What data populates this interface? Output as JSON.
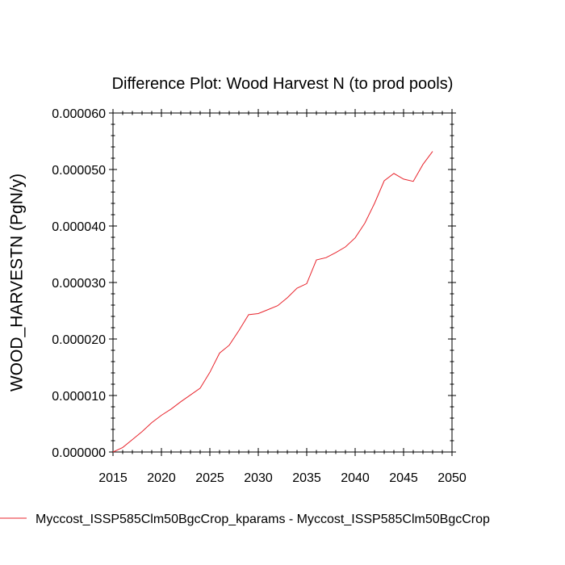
{
  "chart_data": {
    "type": "line",
    "title": "Difference Plot: Wood Harvest N (to prod pools)",
    "xlabel": "",
    "ylabel": "WOOD_HARVESTN  (PgN/y)",
    "xlim": [
      2015,
      2050
    ],
    "ylim": [
      0,
      6e-05
    ],
    "x_ticks": [
      2015,
      2020,
      2025,
      2030,
      2035,
      2040,
      2045,
      2050
    ],
    "x_tick_labels": [
      "2015",
      "2020",
      "2025",
      "2030",
      "2035",
      "2040",
      "2045",
      "2050"
    ],
    "y_ticks": [
      0,
      1e-05,
      2e-05,
      3e-05,
      4e-05,
      5e-05,
      6e-05
    ],
    "y_tick_labels": [
      "0.000000",
      "0.000010",
      "0.000020",
      "0.000030",
      "0.000040",
      "0.000050",
      "0.000060"
    ],
    "x_minor_step": 1,
    "y_minor_step": 2e-06,
    "grid": false,
    "legend_position": "bottom",
    "series": [
      {
        "name": "Myccost_ISSP585Clm50BgcCrop_kparams - Myccost_ISSP585Clm50BgcCrop",
        "color": "#e8242c",
        "x": [
          2015,
          2016,
          2017,
          2018,
          2019,
          2020,
          2021,
          2022,
          2023,
          2024,
          2025,
          2026,
          2027,
          2028,
          2029,
          2030,
          2031,
          2032,
          2033,
          2034,
          2035,
          2036,
          2037,
          2038,
          2039,
          2040,
          2041,
          2042,
          2043,
          2044,
          2045,
          2046,
          2047,
          2048
        ],
        "y": [
          0.0,
          8e-07,
          2.2e-06,
          3.6e-06,
          5.2e-06,
          6.5e-06,
          7.6e-06,
          8.9e-06,
          1.01e-05,
          1.13e-05,
          1.41e-05,
          1.75e-05,
          1.89e-05,
          2.15e-05,
          2.43e-05,
          2.45e-05,
          2.52e-05,
          2.59e-05,
          2.73e-05,
          2.9e-05,
          2.98e-05,
          3.4e-05,
          3.44e-05,
          3.53e-05,
          3.63e-05,
          3.79e-05,
          4.05e-05,
          4.4e-05,
          4.8e-05,
          4.93e-05,
          4.83e-05,
          4.79e-05,
          5.09e-05,
          5.32e-05
        ]
      }
    ]
  }
}
